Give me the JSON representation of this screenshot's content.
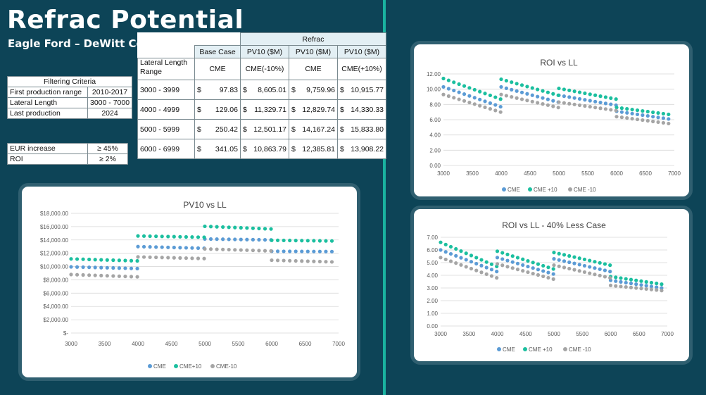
{
  "page": {
    "title": "Refrac Potential",
    "subtitle": "Eagle Ford – DeWitt County"
  },
  "filtering": {
    "header": "Filtering Criteria",
    "rows": [
      [
        "First production range",
        "2010-2017"
      ],
      [
        "Lateral Length",
        "3000 - 7000"
      ],
      [
        "Last production",
        "2024"
      ]
    ]
  },
  "criteria": {
    "rows": [
      [
        "EUR increase",
        "≥ 45%"
      ],
      [
        "ROI",
        "≥ 2%"
      ]
    ]
  },
  "main_table": {
    "group_header": "Refrac",
    "col_headers": [
      "Base Case",
      "PV10 ($M)",
      "PV10 ($M)",
      "PV10 ($M)"
    ],
    "row_header": "Lateral Length Range",
    "sub_headers": [
      "CME",
      "CME(-10%)",
      "CME",
      "CME(+10%)"
    ],
    "rows": [
      {
        "range": "3000 - 3999",
        "values": [
          "97.83",
          "8,605.01",
          "9,759.96",
          "10,915.77"
        ]
      },
      {
        "range": "4000 - 4999",
        "values": [
          "129.06",
          "11,329.71",
          "12,829.74",
          "14,330.33"
        ]
      },
      {
        "range": "5000 - 5999",
        "values": [
          "250.42",
          "12,501.17",
          "14,167.24",
          "15,833.80"
        ]
      },
      {
        "range": "6000 - 6999",
        "values": [
          "341.05",
          "10,863.79",
          "12,385.81",
          "13,908.22"
        ]
      }
    ],
    "currency": "$"
  },
  "colors": {
    "background": "#0d4457",
    "divider": "#1ab3a0",
    "cme": "#5b9bd5",
    "cme_plus": "#1bbf9f",
    "cme_minus": "#a5a5a5"
  },
  "chart_data": [
    {
      "id": "pv10",
      "type": "scatter",
      "title": "PV10 vs LL",
      "xlim": [
        3000,
        7000
      ],
      "ylim": [
        0,
        18000
      ],
      "x_ticks": [
        3000,
        3500,
        4000,
        4500,
        5000,
        5500,
        6000,
        6500,
        7000
      ],
      "y_ticks": [
        "$-",
        "$2,000.00",
        "$4,000.00",
        "$6,000.00",
        "$8,000.00",
        "$10,000.00",
        "$12,000.00",
        "$14,000.00",
        "$16,000.00",
        "$18,000.00"
      ],
      "y_tick_values": [
        0,
        2000,
        4000,
        6000,
        8000,
        10000,
        12000,
        14000,
        16000,
        18000
      ],
      "grid": true,
      "legend": "bottom",
      "series": [
        {
          "name": "CME",
          "color": "#5b9bd5",
          "segments": [
            [
              3000,
              3990,
              9950,
              9700
            ],
            [
              4000,
              4990,
              13000,
              12750
            ],
            [
              5000,
              5990,
              14150,
              14000
            ],
            [
              6000,
              6900,
              12300,
              12250
            ]
          ]
        },
        {
          "name": "CME+10",
          "color": "#1bbf9f",
          "segments": [
            [
              3000,
              3990,
              11150,
              10850
            ],
            [
              4000,
              4990,
              14600,
              14400
            ],
            [
              5000,
              5990,
              16050,
              15650
            ],
            [
              6000,
              6900,
              13950,
              13850
            ]
          ]
        },
        {
          "name": "CME-10",
          "color": "#a5a5a5",
          "segments": [
            [
              3000,
              3990,
              8800,
              8450
            ],
            [
              4000,
              4990,
              11450,
              11200
            ],
            [
              5000,
              5990,
              12650,
              12350
            ],
            [
              6000,
              6900,
              10950,
              10700
            ]
          ]
        }
      ]
    },
    {
      "id": "roi",
      "type": "scatter",
      "title": "ROI vs LL",
      "xlim": [
        3000,
        7000
      ],
      "ylim": [
        0,
        12
      ],
      "x_ticks": [
        3000,
        3500,
        4000,
        4500,
        5000,
        5500,
        6000,
        6500,
        7000
      ],
      "y_ticks": [
        "0.00",
        "2.00",
        "4.00",
        "6.00",
        "8.00",
        "10.00",
        "12.00"
      ],
      "y_tick_values": [
        0,
        2,
        4,
        6,
        8,
        10,
        12
      ],
      "grid": true,
      "legend": "bottom",
      "series": [
        {
          "name": "CME",
          "color": "#5b9bd5",
          "segments": [
            [
              3000,
              3990,
              10.3,
              7.7
            ],
            [
              4000,
              4990,
              10.3,
              8.3
            ],
            [
              5000,
              5990,
              9.2,
              7.9
            ],
            [
              6000,
              6900,
              7.1,
              6.1
            ]
          ]
        },
        {
          "name": "CME +10",
          "color": "#1bbf9f",
          "segments": [
            [
              3000,
              3990,
              11.4,
              8.7
            ],
            [
              4000,
              4990,
              11.3,
              9.2
            ],
            [
              5000,
              5990,
              10.1,
              8.7
            ],
            [
              6000,
              6900,
              7.6,
              6.7
            ]
          ]
        },
        {
          "name": "CME -10",
          "color": "#a5a5a5",
          "segments": [
            [
              3000,
              3990,
              9.3,
              7.0
            ],
            [
              4000,
              4990,
              9.3,
              7.6
            ],
            [
              5000,
              5990,
              8.3,
              7.2
            ],
            [
              6000,
              6900,
              6.4,
              5.5
            ]
          ]
        }
      ]
    },
    {
      "id": "roi40",
      "type": "scatter",
      "title": "ROI vs LL - 40% Less Case",
      "xlim": [
        3000,
        7000
      ],
      "ylim": [
        0,
        7
      ],
      "x_ticks": [
        3000,
        3500,
        4000,
        4500,
        5000,
        5500,
        6000,
        6500,
        7000
      ],
      "y_ticks": [
        "0.00",
        "1.00",
        "2.00",
        "3.00",
        "4.00",
        "5.00",
        "6.00",
        "7.00"
      ],
      "y_tick_values": [
        0,
        1,
        2,
        3,
        4,
        5,
        6,
        7
      ],
      "grid": true,
      "legend": "bottom",
      "series": [
        {
          "name": "CME",
          "color": "#5b9bd5",
          "segments": [
            [
              3000,
              3990,
              6.0,
              4.3
            ],
            [
              4000,
              4990,
              5.4,
              4.1
            ],
            [
              5000,
              5990,
              5.3,
              4.3
            ],
            [
              6000,
              6900,
              3.6,
              3.0
            ]
          ]
        },
        {
          "name": "CME +10",
          "color": "#1bbf9f",
          "segments": [
            [
              3000,
              3990,
              6.6,
              4.7
            ],
            [
              4000,
              4990,
              5.9,
              4.5
            ],
            [
              5000,
              5990,
              5.8,
              4.8
            ],
            [
              6000,
              6900,
              3.9,
              3.3
            ]
          ]
        },
        {
          "name": "CME -10",
          "color": "#a5a5a5",
          "segments": [
            [
              3000,
              3990,
              5.4,
              3.8
            ],
            [
              4000,
              4990,
              4.9,
              3.7
            ],
            [
              5000,
              5990,
              4.8,
              3.8
            ],
            [
              6000,
              6900,
              3.2,
              2.8
            ]
          ]
        }
      ]
    }
  ]
}
